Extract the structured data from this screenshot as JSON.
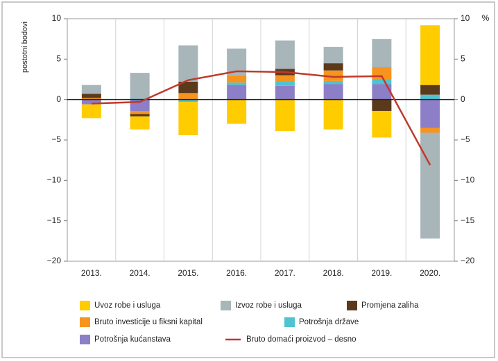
{
  "chart_data": {
    "type": "bar",
    "ylabel": "postotni bodovi",
    "y2label": "%",
    "categories": [
      "2013.",
      "2014.",
      "2015.",
      "2016.",
      "2017.",
      "2018.",
      "2019.",
      "2020."
    ],
    "series": [
      {
        "name": "Uvoz robe i usluga",
        "color": "#ffcc00",
        "values": [
          -1.7,
          -1.6,
          -4.1,
          -3.0,
          -3.9,
          -3.7,
          -3.3,
          7.4
        ]
      },
      {
        "name": "Izvoz robe i usluga",
        "color": "#a8b5b9",
        "values": [
          1.1,
          3.2,
          4.5,
          3.3,
          3.5,
          2.0,
          3.5,
          -13.1
        ]
      },
      {
        "name": "Promjena zaliha",
        "color": "#5b3a1c",
        "values": [
          0.5,
          -0.3,
          1.4,
          0,
          0.8,
          0.9,
          -1.4,
          1.2
        ]
      },
      {
        "name": "Bruto investicije u fiksni kapital",
        "color": "#f7941d",
        "values": [
          0.2,
          -0.4,
          0.8,
          0.9,
          0.8,
          1.3,
          1.5,
          -0.6
        ]
      },
      {
        "name": "Potrošnja države",
        "color": "#4fc3d0",
        "values": [
          0,
          0.1,
          -0.3,
          0.3,
          0.5,
          0.4,
          0.6,
          0.6
        ]
      },
      {
        "name": "Potrošnja kućanstava",
        "color": "#8c7fc8",
        "values": [
          -0.6,
          -1.4,
          0,
          1.8,
          1.7,
          1.9,
          1.9,
          -3.5
        ]
      },
      {
        "name": "Bruto domaći proizvod – desno",
        "color": "#c0392b",
        "type": "line",
        "axis": "y2",
        "values": [
          -0.5,
          -0.3,
          2.4,
          3.5,
          3.4,
          2.8,
          2.9,
          -8.1
        ]
      }
    ],
    "ylim": [
      -20,
      10
    ],
    "yticks": [
      {
        "value": -20,
        "label": "−20"
      },
      {
        "value": -15,
        "label": "−15"
      },
      {
        "value": -10,
        "label": "−10"
      },
      {
        "value": -5,
        "label": "−5"
      },
      0,
      5,
      10
    ],
    "y2lim": [
      -20,
      10
    ],
    "y2ticks": [
      {
        "value": -20,
        "label": "−20"
      },
      {
        "value": -15,
        "label": "−15"
      },
      {
        "value": -10,
        "label": "−10"
      },
      {
        "value": -5,
        "label": "−5"
      },
      0,
      5,
      10
    ]
  }
}
